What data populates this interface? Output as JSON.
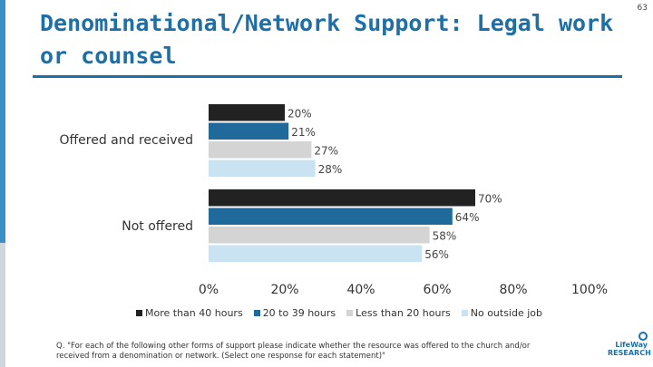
{
  "slide": {
    "title": "Denominational/Network Support: Legal work or counsel",
    "page_number": "63",
    "footnote": "Q. \"For each of the following other forms of support please indicate whether the resource was offered to the church and/or received from a denomination or network. (Select one response for each statement)\"",
    "logo_text": "LifeWay RESEARCH"
  },
  "chart_data": {
    "type": "bar",
    "orientation": "horizontal",
    "title": "",
    "xlabel": "",
    "ylabel": "",
    "categories": [
      "Offered and received",
      "Not offered"
    ],
    "series": [
      {
        "name": "More than 40 hours",
        "color": "#222222",
        "values": [
          20,
          70
        ]
      },
      {
        "name": "20 to 39 hours",
        "color": "#1f6a9b",
        "values": [
          21,
          64
        ]
      },
      {
        "name": "Less than 20 hours",
        "color": "#d4d4d4",
        "values": [
          27,
          58
        ]
      },
      {
        "name": "No outside job",
        "color": "#c9e3f3",
        "values": [
          28,
          56
        ]
      }
    ],
    "data_labels": [
      [
        "20%",
        "21%",
        "27%",
        "28%"
      ],
      [
        "70%",
        "64%",
        "58%",
        "56%"
      ]
    ],
    "xlim": [
      0,
      100
    ],
    "ticks": [
      "0%",
      "20%",
      "40%",
      "60%",
      "80%",
      "100%"
    ],
    "grid": false,
    "legend_position": "bottom"
  }
}
